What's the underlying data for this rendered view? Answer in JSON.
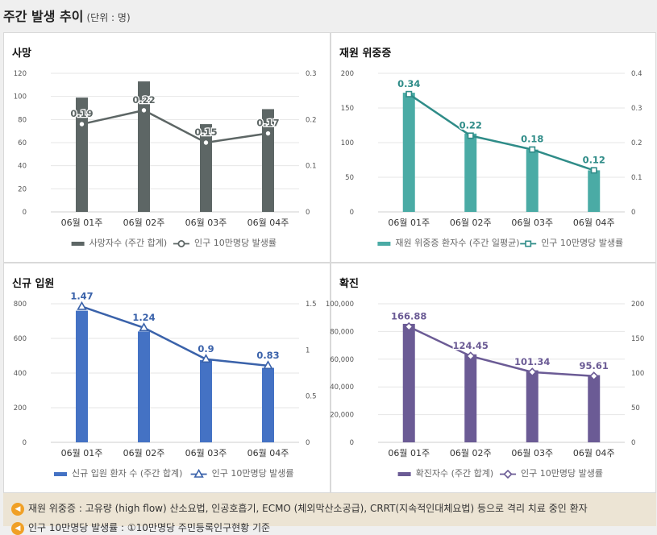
{
  "header": {
    "title": "주간 발생 추이",
    "unit": "(단위 : 명)"
  },
  "notes": [
    {
      "icon": "speaker-icon",
      "text": "재원 위중증 : 고유량 (high flow) 산소요법, 인공호흡기, ECMO (체외막산소공급), CRRT(지속적인대체요법) 등으로 격리 치료 중인 환자"
    },
    {
      "icon": "speaker-icon",
      "text": "인구 10만명당 발생률 : ①10만명당 주민등록인구현황 기준"
    }
  ],
  "chart_data": [
    {
      "id": "deaths",
      "type": "bar",
      "title": "사망",
      "categories": [
        "06월 01주",
        "06월 02주",
        "06월 03주",
        "06월 04주"
      ],
      "bar_series": {
        "name": "사망자수 (주간 합계)",
        "values": [
          99,
          113,
          76,
          89
        ],
        "color": "#5d6665"
      },
      "line_series": {
        "name": "인구 10만명당 발생률",
        "values": [
          0.19,
          0.22,
          0.15,
          0.17
        ],
        "color": "#5d6665",
        "marker": "circle",
        "labels": [
          "0.19",
          "0.22",
          "0.15",
          "0.17"
        ]
      },
      "y_left": {
        "min": 0,
        "max": 120,
        "ticks": [
          "0",
          "20",
          "40",
          "60",
          "80",
          "100",
          "120"
        ]
      },
      "y_right": {
        "min": 0,
        "max": 0.3,
        "ticks": [
          "0",
          "0.1",
          "0.2",
          "0.3"
        ]
      },
      "grid": true,
      "legend": "bottom"
    },
    {
      "id": "critical",
      "type": "bar",
      "title": "재원 위중증",
      "categories": [
        "06월 01주",
        "06월 02주",
        "06월 03주",
        "06월 04주"
      ],
      "bar_series": {
        "name": "재원 위중증 환자수 (주간 일평균)",
        "values": [
          172,
          113,
          90,
          60
        ],
        "color": "#4aaba5"
      },
      "line_series": {
        "name": "인구 10만명당 발생률",
        "values": [
          0.34,
          0.22,
          0.18,
          0.12
        ],
        "color": "#2f8c88",
        "marker": "square",
        "labels": [
          "0.34",
          "0.22",
          "0.18",
          "0.12"
        ]
      },
      "y_left": {
        "min": 0,
        "max": 200,
        "ticks": [
          "0",
          "50",
          "100",
          "150",
          "200"
        ]
      },
      "y_right": {
        "min": 0,
        "max": 0.4,
        "ticks": [
          "0",
          "0.1",
          "0.2",
          "0.3",
          "0.4"
        ]
      },
      "grid": true,
      "legend": "bottom"
    },
    {
      "id": "admissions",
      "type": "bar",
      "title": "신규 입원",
      "categories": [
        "06월 01주",
        "06월 02주",
        "06월 03주",
        "06월 04주"
      ],
      "bar_series": {
        "name": "신규 입원 환자 수 (주간 합계)",
        "values": [
          760,
          640,
          475,
          430
        ],
        "color": "#4472c4"
      },
      "line_series": {
        "name": "인구 10만명당 발생률",
        "values": [
          1.47,
          1.24,
          0.9,
          0.83
        ],
        "color": "#3a62aa",
        "marker": "triangle",
        "labels": [
          "1.47",
          "1.24",
          "0.9",
          "0.83"
        ]
      },
      "y_left": {
        "min": 0,
        "max": 800,
        "ticks": [
          "0",
          "200",
          "400",
          "600",
          "800"
        ]
      },
      "y_right": {
        "min": 0,
        "max": 1.5,
        "ticks": [
          "0",
          "0.5",
          "1",
          "1.5"
        ]
      },
      "grid": true,
      "legend": "bottom"
    },
    {
      "id": "confirmed",
      "type": "bar",
      "title": "확진",
      "categories": [
        "06월 01주",
        "06월 02주",
        "06월 03주",
        "06월 04주"
      ],
      "bar_series": {
        "name": "확진자수 (주간 합계)",
        "values": [
          85500,
          63500,
          52000,
          48500
        ],
        "color": "#6b5b95"
      },
      "line_series": {
        "name": "인구 10만명당 발생률",
        "values": [
          166.88,
          124.45,
          101.34,
          95.61
        ],
        "color": "#6b5b95",
        "marker": "diamond",
        "labels": [
          "166.88",
          "124.45",
          "101.34",
          "95.61"
        ]
      },
      "y_left": {
        "min": 0,
        "max": 100000,
        "ticks": [
          "0",
          "20,000",
          "40,000",
          "60,000",
          "80,000",
          "100,000"
        ]
      },
      "y_right": {
        "min": 0,
        "max": 200,
        "ticks": [
          "0",
          "50",
          "100",
          "150",
          "200"
        ]
      },
      "grid": true,
      "legend": "bottom"
    }
  ]
}
